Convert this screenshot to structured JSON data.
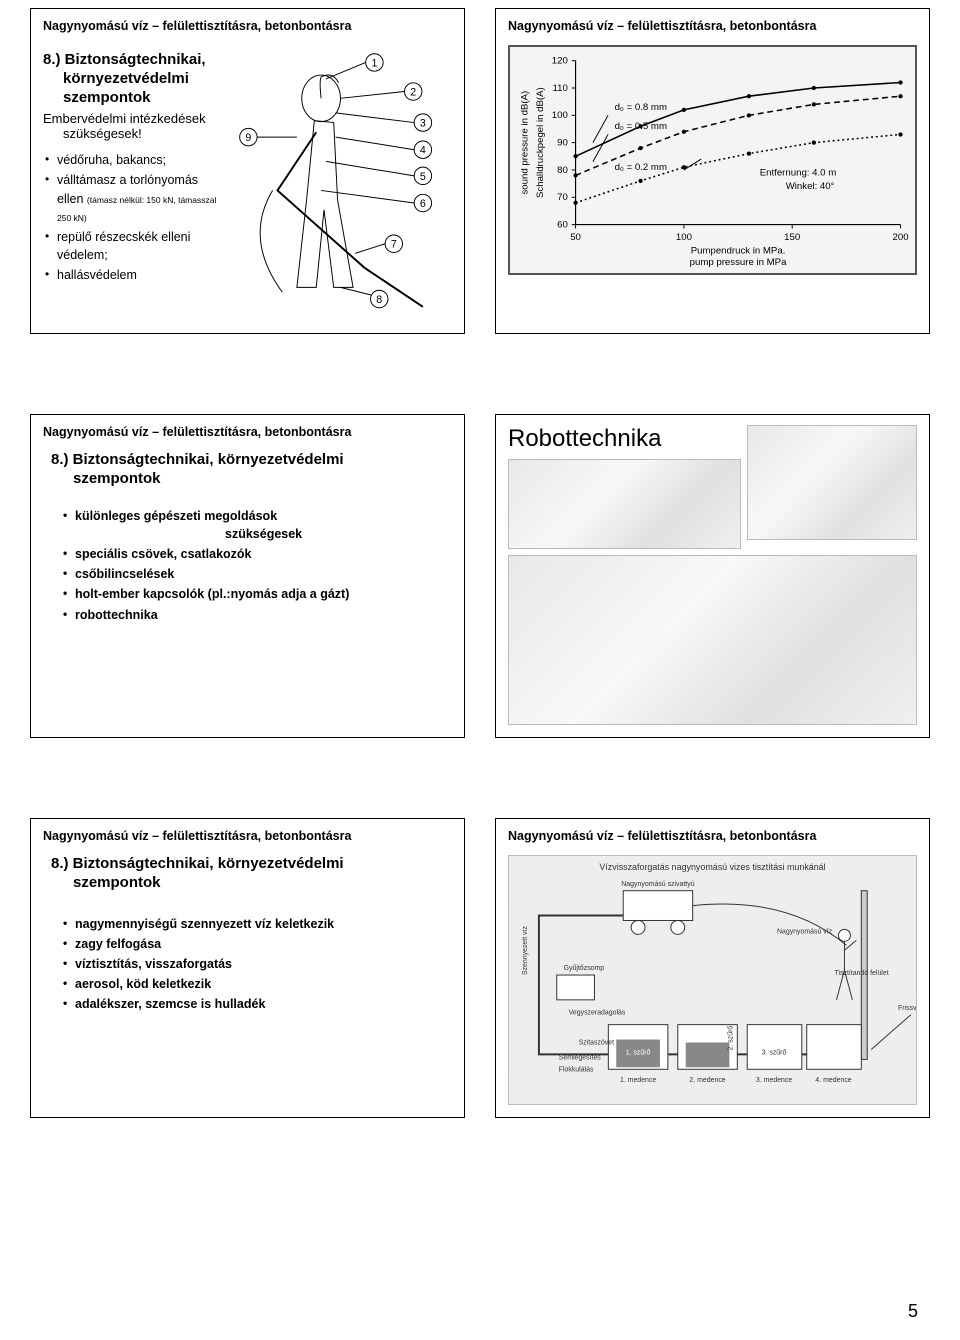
{
  "common_title": "Nagynyomású víz – felülettisztításra, betonbontásra",
  "slide1": {
    "subtitle_a": "8.) Biztonságtechnikai,",
    "subtitle_b": "környezetvédelmi",
    "subtitle_c": "szempontok",
    "line1a": "Embervédelmi intézkedések",
    "line1b": "szükségesek!",
    "b1": "védőruha, bakancs;",
    "b2a": "válltámasz a torlónyomás",
    "b2b": "ellen",
    "b2s": "(támasz nélkül: 150 kN, támasszal 250 kN)",
    "b3a": "repülő részecskék elleni",
    "b3b": "védelem;",
    "b4": "hallásvédelem"
  },
  "chart": {
    "type": "line",
    "background_color": "#f4f4f4",
    "axis_color": "#000000",
    "grid_color": "#555555",
    "ylabel1": "sound pressure in dB(A)",
    "ylabel2": "Schalldruckpegel in dB(A)",
    "xlabel1": "Pumpendruck in MPa.",
    "xlabel2": "pump pressure in MPa",
    "xlim": [
      50,
      200
    ],
    "ylim": [
      60,
      120
    ],
    "xticks": [
      50,
      100,
      150,
      200
    ],
    "yticks": [
      60,
      70,
      80,
      90,
      100,
      110,
      120
    ],
    "series": [
      {
        "label": "d₀ = 0.8 mm",
        "color": "#000000",
        "dash": "none",
        "points": [
          [
            50,
            85
          ],
          [
            80,
            96
          ],
          [
            100,
            102
          ],
          [
            130,
            107
          ],
          [
            160,
            110
          ],
          [
            200,
            112
          ]
        ]
      },
      {
        "label": "d₀ = 0.5 mm",
        "color": "#000000",
        "dash": "6,4",
        "points": [
          [
            50,
            78
          ],
          [
            80,
            88
          ],
          [
            100,
            94
          ],
          [
            130,
            100
          ],
          [
            160,
            104
          ],
          [
            200,
            107
          ]
        ]
      },
      {
        "label": "d₀ = 0.2 mm",
        "color": "#000000",
        "dash": "2,3",
        "points": [
          [
            50,
            68
          ],
          [
            80,
            76
          ],
          [
            100,
            81
          ],
          [
            130,
            86
          ],
          [
            160,
            90
          ],
          [
            200,
            93
          ]
        ]
      }
    ],
    "ann1": "d₀ = 0.8 mm",
    "ann2": "d₀ = 0.5 mm",
    "ann3": "d₀ = 0.2 mm",
    "ann4a": "Entfernung: 4.0 m",
    "ann4b": "Winkel: 40°"
  },
  "slide3": {
    "subtitle": "8.) Biztonságtechnikai, környezetvédelmi",
    "subtitle2": "szempontok",
    "b1a": "különleges gépészeti megoldások",
    "b1b": "szükségesek",
    "b2": "speciális csövek, csatlakozók",
    "b3": "csőbilincselések",
    "b4": "holt-ember kapcsolók (pl.:nyomás adja a gázt)",
    "b5": "robottechnika"
  },
  "slide4": {
    "title": "Robottechnika"
  },
  "slide5": {
    "subtitle": "8.) Biztonságtechnikai, környezetvédelmi",
    "subtitle2": "szempontok",
    "b1": "nagymennyiségű szennyezett víz keletkezik",
    "b2": "zagy felfogása",
    "b3": "víztisztítás, visszaforgatás",
    "b4": "aerosol, köd keletkezik",
    "b5": "adalékszer, szemcse is hulladék"
  },
  "page_number": "5"
}
